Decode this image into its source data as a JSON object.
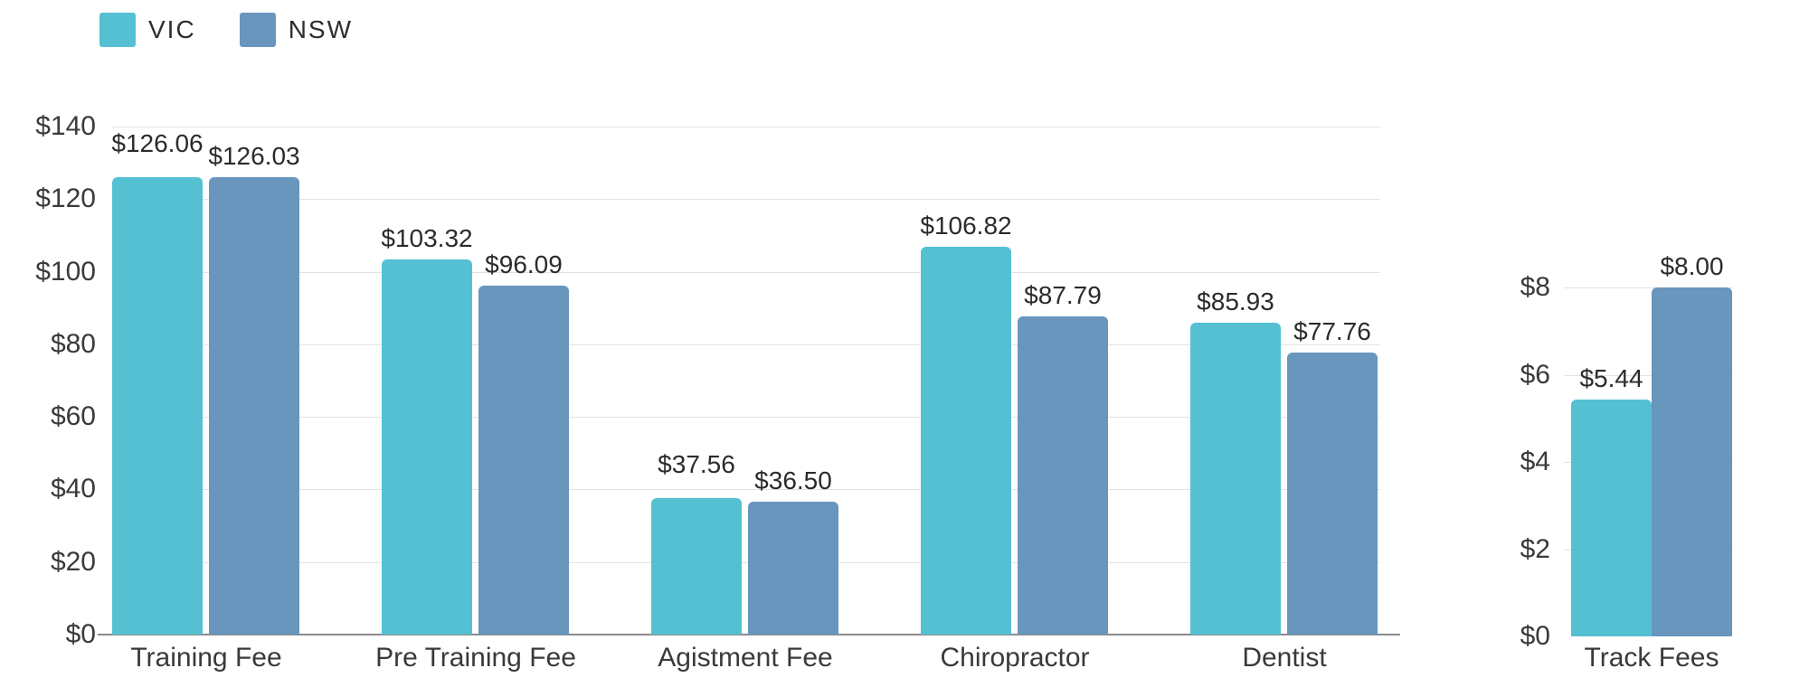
{
  "legend": {
    "items": [
      {
        "label": "VIC",
        "color": "#54c0d2"
      },
      {
        "label": "NSW",
        "color": "#6896bd"
      }
    ]
  },
  "colors": {
    "grid": "#e3e3e3",
    "axis": "#8b8b8b",
    "text": "#3a3a3a",
    "vic": "#54c0d2",
    "nsw": "#6896bd"
  },
  "chart_data": [
    {
      "type": "bar",
      "title": "",
      "categories": [
        "Training Fee",
        "Pre Training Fee",
        "Agistment Fee",
        "Chiropractor",
        "Dentist"
      ],
      "series": [
        {
          "name": "VIC",
          "color": "#54c0d2",
          "values": [
            126.06,
            103.32,
            37.56,
            106.82,
            85.93
          ],
          "labels": [
            "$126.06",
            "$103.32",
            "$37.56",
            "$106.82",
            "$85.93"
          ]
        },
        {
          "name": "NSW",
          "color": "#6896bd",
          "values": [
            126.03,
            96.09,
            36.5,
            87.79,
            77.76
          ],
          "labels": [
            "$126.03",
            "$96.09",
            "$36.50",
            "$87.79",
            "$77.76"
          ]
        }
      ],
      "y_axis": {
        "min": 0,
        "max": 140,
        "ticks": [
          0,
          20,
          40,
          60,
          80,
          100,
          120,
          140
        ],
        "tick_labels": [
          "$0",
          "$20",
          "$40",
          "$60",
          "$80",
          "$100",
          "$120",
          "$140"
        ]
      },
      "grid": true,
      "legend_position": "top-left"
    },
    {
      "type": "bar",
      "title": "",
      "categories": [
        "Track Fees"
      ],
      "series": [
        {
          "name": "VIC",
          "color": "#54c0d2",
          "values": [
            5.44
          ],
          "labels": [
            "$5.44"
          ]
        },
        {
          "name": "NSW",
          "color": "#6896bd",
          "values": [
            8.0
          ],
          "labels": [
            "$8.00"
          ]
        }
      ],
      "y_axis": {
        "min": 0,
        "max": 8,
        "ticks": [
          0,
          2,
          4,
          6,
          8
        ],
        "tick_labels": [
          "$0",
          "$2",
          "$4",
          "$6",
          "$8"
        ],
        "axis_line": false
      },
      "grid": true
    }
  ]
}
